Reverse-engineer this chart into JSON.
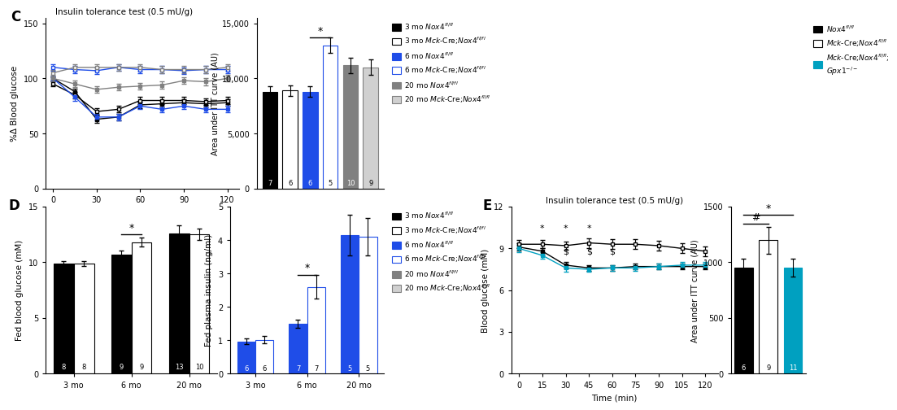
{
  "panel_C_title": "Insulin tolerance test (0.5 mU/g)",
  "panel_C_ylabel": "%Δ Blood glucose",
  "panel_C_xvals": [
    0,
    15,
    30,
    45,
    60,
    75,
    90,
    105,
    120
  ],
  "panel_C_lines": {
    "3mo_nox4": {
      "mean": [
        100,
        88,
        63,
        65,
        76,
        77,
        78,
        77,
        78
      ],
      "sem": [
        2,
        3,
        3,
        3,
        3,
        3,
        3,
        3,
        3
      ]
    },
    "3mo_mck": {
      "mean": [
        95,
        85,
        70,
        72,
        80,
        80,
        80,
        79,
        80
      ],
      "sem": [
        2,
        3,
        3,
        3,
        3,
        3,
        3,
        3,
        3
      ]
    },
    "6mo_nox4": {
      "mean": [
        100,
        83,
        65,
        65,
        75,
        72,
        75,
        72,
        72
      ],
      "sem": [
        2,
        3,
        3,
        3,
        3,
        3,
        3,
        3,
        3
      ]
    },
    "6mo_mck": {
      "mean": [
        110,
        108,
        107,
        110,
        108,
        108,
        107,
        108,
        108
      ],
      "sem": [
        3,
        3,
        3,
        3,
        3,
        3,
        3,
        3,
        3
      ]
    },
    "20mo_nox4": {
      "mean": [
        100,
        95,
        90,
        92,
        93,
        94,
        98,
        97,
        100
      ],
      "sem": [
        3,
        3,
        3,
        3,
        3,
        3,
        3,
        3,
        3
      ]
    },
    "20mo_mck": {
      "mean": [
        105,
        110,
        110,
        110,
        110,
        108,
        108,
        108,
        110
      ],
      "sem": [
        3,
        3,
        3,
        3,
        3,
        3,
        3,
        3,
        3
      ]
    }
  },
  "panel_C_ylim": [
    0,
    155
  ],
  "panel_C_yticks": [
    0,
    50,
    100,
    150
  ],
  "panel_Cbar_values": [
    8800,
    8900,
    8800,
    13000,
    11200,
    11000
  ],
  "panel_Cbar_errors": [
    500,
    500,
    500,
    700,
    700,
    700
  ],
  "panel_Cbar_colors": [
    "#000000",
    "#ffffff",
    "#1f4de8",
    "#ffffff",
    "#808080",
    "#d0d0d0"
  ],
  "panel_Cbar_edge_colors": [
    "#000000",
    "#000000",
    "#1f4de8",
    "#1f4de8",
    "#808080",
    "#808080"
  ],
  "panel_Cbar_ns": [
    7,
    6,
    6,
    5,
    10,
    9
  ],
  "panel_Cbar_ylabel": "Area under ITT curve (AU)",
  "panel_Cbar_ylim": [
    0,
    15500
  ],
  "panel_Cbar_yticks": [
    0,
    5000,
    10000,
    15000
  ],
  "panel_Cbar_yticklabels": [
    "0",
    "5,000",
    "10,000",
    "15,000"
  ],
  "panel_D1_groups": [
    "3 mo",
    "6 mo",
    "20 mo"
  ],
  "panel_D1_nox4": [
    9.9,
    10.7,
    12.6
  ],
  "panel_D1_mck": [
    9.9,
    11.8,
    12.5
  ],
  "panel_D1_nox4_err": [
    0.2,
    0.35,
    0.7
  ],
  "panel_D1_mck_err": [
    0.2,
    0.4,
    0.5
  ],
  "panel_D1_ns_nox4": [
    8,
    9,
    13
  ],
  "panel_D1_ns_mck": [
    8,
    9,
    10
  ],
  "panel_D1_ylabel": "Fed blood glucose (mM)",
  "panel_D1_ylim": [
    0,
    15
  ],
  "panel_D1_yticks": [
    0,
    5,
    10,
    15
  ],
  "panel_D2_groups": [
    "3 mo",
    "6 mo",
    "20 mo"
  ],
  "panel_D2_nox4": [
    0.97,
    1.5,
    4.15
  ],
  "panel_D2_mck": [
    1.02,
    2.6,
    4.1
  ],
  "panel_D2_nox4_err": [
    0.09,
    0.12,
    0.6
  ],
  "panel_D2_mck_err": [
    0.1,
    0.35,
    0.55
  ],
  "panel_D2_ns_nox4": [
    6,
    7,
    5
  ],
  "panel_D2_ns_mck": [
    6,
    7,
    5
  ],
  "panel_D2_ylabel": "Fed plasma insulin (ng/ml)",
  "panel_D2_ylim": [
    0,
    5
  ],
  "panel_D2_yticks": [
    0,
    1,
    2,
    3,
    4,
    5
  ],
  "panel_E_title": "Insulin tolerance test (0.5 mU/g)",
  "panel_E_xlabel": "Time (min)",
  "panel_E_ylabel": "Blood glucose (mM)",
  "panel_E_xvals": [
    0,
    15,
    30,
    45,
    60,
    75,
    90,
    105,
    120
  ],
  "panel_E_lines": {
    "nox4": {
      "mean": [
        9.1,
        8.8,
        7.8,
        7.6,
        7.6,
        7.7,
        7.7,
        7.7,
        7.7
      ],
      "sem": [
        0.25,
        0.25,
        0.25,
        0.2,
        0.2,
        0.2,
        0.2,
        0.2,
        0.2
      ]
    },
    "mck": {
      "mean": [
        9.3,
        9.3,
        9.2,
        9.4,
        9.3,
        9.3,
        9.2,
        9.0,
        8.8
      ],
      "sem": [
        0.3,
        0.3,
        0.3,
        0.35,
        0.35,
        0.35,
        0.35,
        0.35,
        0.35
      ]
    },
    "gpx": {
      "mean": [
        9.0,
        8.5,
        7.6,
        7.5,
        7.6,
        7.6,
        7.7,
        7.8,
        7.8
      ],
      "sem": [
        0.25,
        0.25,
        0.25,
        0.2,
        0.2,
        0.2,
        0.2,
        0.2,
        0.2
      ]
    }
  },
  "panel_E_ylim": [
    0,
    12
  ],
  "panel_E_yticks": [
    0,
    3,
    6,
    9,
    12
  ],
  "panel_Ebar_values": [
    950,
    1200,
    950
  ],
  "panel_Ebar_errors": [
    80,
    120,
    80
  ],
  "panel_Ebar_colors": [
    "#000000",
    "#ffffff",
    "#00a0c0"
  ],
  "panel_Ebar_edge_colors": [
    "#000000",
    "#000000",
    "#00a0c0"
  ],
  "panel_Ebar_ns": [
    6,
    9,
    11
  ],
  "panel_Ebar_ylabel": "Area under ITT curve (AU)",
  "panel_Ebar_ylim": [
    0,
    1500
  ],
  "panel_Ebar_yticks": [
    0,
    500,
    1000,
    1500
  ],
  "legend_C_labels": [
    "3 mo $\\it{Nox4}$$^{fl/fl}$",
    "3 mo $\\it{Mck}$-Cre;$\\it{Nox4}$$^{fl/fl}$",
    "6 mo $\\it{Nox4}$$^{fl/fl}$",
    "6 mo $\\it{Mck}$-Cre;$\\it{Nox4}$$^{fl/fl}$",
    "20 mo $\\it{Nox4}$$^{fl/fl}$",
    "20 mo $\\it{Mck}$-Cre;$\\it{Nox4}$$^{fl/fl}$"
  ],
  "legend_C_facecolors": [
    "#000000",
    "#ffffff",
    "#1f4de8",
    "#ffffff",
    "#808080",
    "#d0d0d0"
  ],
  "legend_C_edgecolors": [
    "#000000",
    "#000000",
    "#1f4de8",
    "#1f4de8",
    "#808080",
    "#808080"
  ],
  "legend_D_labels": [
    "3 mo $\\it{Nox4}$$^{fl/fl}$",
    "3 mo $\\it{Mck}$-Cre;$\\it{Nox4}$$^{fl/fl}$",
    "6 mo $\\it{Nox4}$$^{fl/fl}$",
    "6 mo $\\it{Mck}$-Cre;$\\it{Nox4}$$^{fl/fl}$",
    "20 mo $\\it{Nox4}$$^{fl/fl}$",
    "20 mo $\\it{Mck}$-Cre;$\\it{Nox4}$$^{fl/fl}$"
  ],
  "legend_D_facecolors": [
    "#000000",
    "#ffffff",
    "#1f4de8",
    "#ffffff",
    "#808080",
    "#d0d0d0"
  ],
  "legend_D_edgecolors": [
    "#000000",
    "#000000",
    "#1f4de8",
    "#1f4de8",
    "#808080",
    "#808080"
  ],
  "legend_E_labels": [
    "$\\it{Nox4}$$^{fl/fl}$",
    "$\\it{Mck}$-Cre;$\\it{Nox4}$$^{fl/fl}$",
    "$\\it{Mck}$-Cre;$\\it{Nox4}$$^{fl/fl}$;\n$\\it{Gpx1}$$^{-/-}$"
  ],
  "legend_E_facecolors": [
    "#000000",
    "#ffffff",
    "#00a0c0"
  ],
  "legend_E_edgecolors": [
    "#000000",
    "#000000",
    "#00a0c0"
  ],
  "black": "#000000",
  "blue": "#1f4de8",
  "gray": "#808080",
  "lgray": "#d0d0d0",
  "cyan": "#00a0c0",
  "white": "#ffffff"
}
